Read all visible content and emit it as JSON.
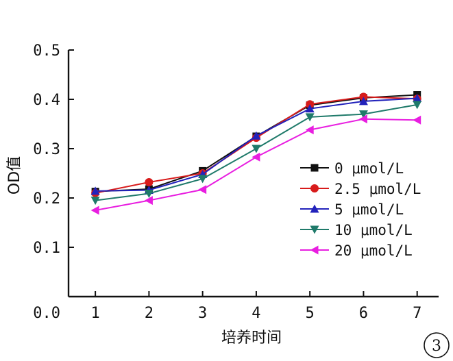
{
  "chart_data": {
    "type": "line",
    "title": "",
    "xlabel": "培养时间",
    "ylabel": "OD值",
    "x": [
      1,
      2,
      3,
      4,
      5,
      6,
      7
    ],
    "xlim": [
      0.5,
      7.4
    ],
    "ylim": [
      0.0,
      0.5
    ],
    "x_ticks": [
      "1",
      "2",
      "3",
      "4",
      "5",
      "6",
      "7"
    ],
    "y_ticks": [
      "0.0",
      "0.1",
      "0.2",
      "0.3",
      "0.4",
      "0.5"
    ],
    "grid": false,
    "legend_position": "right-center",
    "series": [
      {
        "name": "0 μmol/L",
        "color": "#111111",
        "marker": "square",
        "values": [
          0.213,
          0.218,
          0.255,
          0.325,
          0.388,
          0.403,
          0.409
        ]
      },
      {
        "name": "2.5 μmol/L",
        "color": "#d81b1b",
        "marker": "circle",
        "values": [
          0.21,
          0.232,
          0.25,
          0.322,
          0.39,
          0.405,
          0.401
        ]
      },
      {
        "name": "5 μmol/L",
        "color": "#2222bb",
        "marker": "triangle-up",
        "values": [
          0.214,
          0.216,
          0.248,
          0.326,
          0.381,
          0.396,
          0.402
        ]
      },
      {
        "name": "10 μmol/L",
        "color": "#1f7a6a",
        "marker": "triangle-down",
        "values": [
          0.195,
          0.209,
          0.239,
          0.3,
          0.364,
          0.37,
          0.389
        ]
      },
      {
        "name": "20 μmol/L",
        "color": "#e81ee0",
        "marker": "triangle-left",
        "values": [
          0.175,
          0.195,
          0.217,
          0.283,
          0.338,
          0.36,
          0.358
        ]
      }
    ]
  },
  "panel_label": "3"
}
